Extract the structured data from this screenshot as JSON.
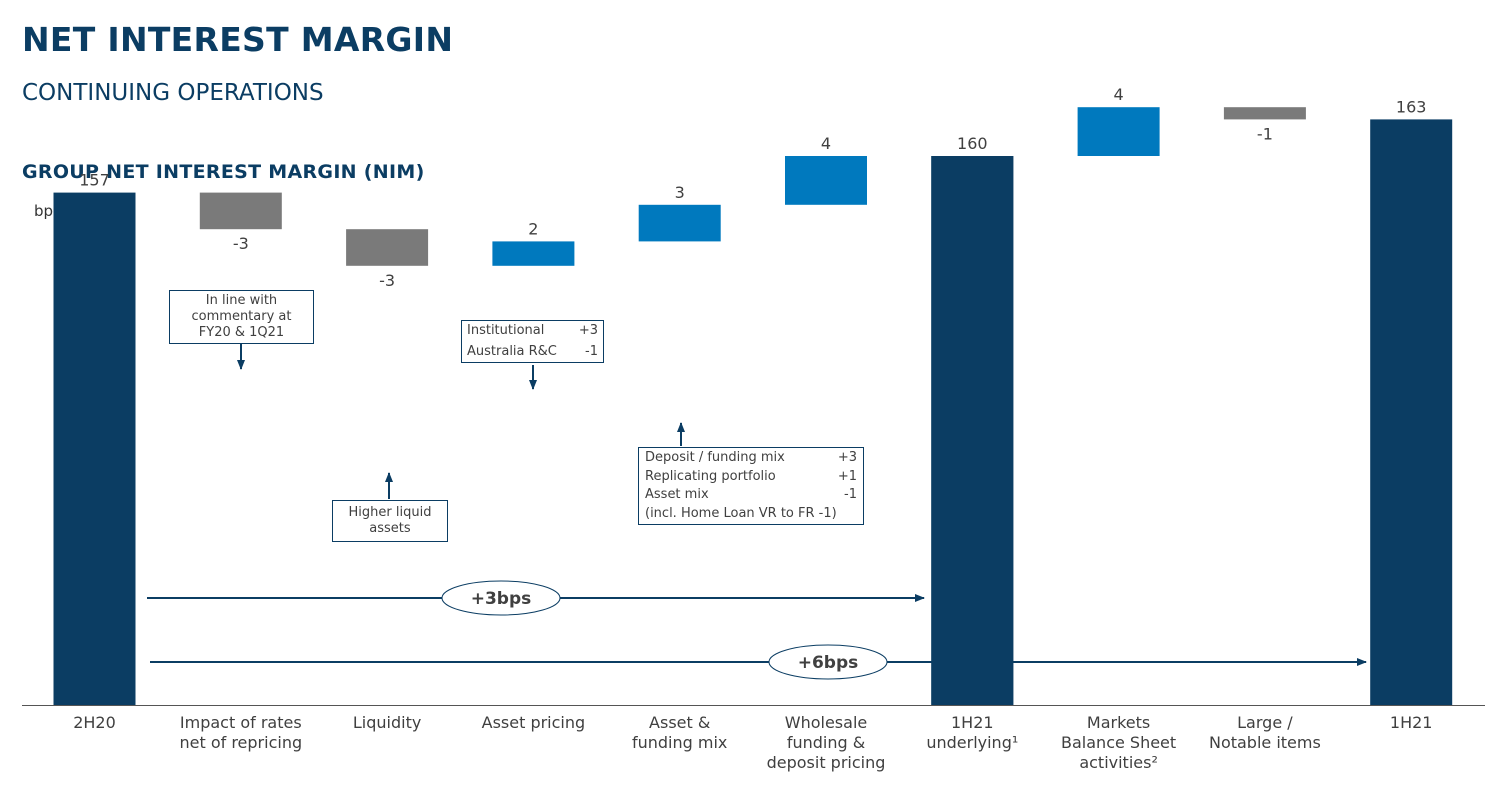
{
  "page": {
    "title": "NET INTEREST MARGIN",
    "subtitle": "CONTINUING OPERATIONS"
  },
  "chart_title": "GROUP NET INTEREST MARGIN (NIM)",
  "colors": {
    "total": "#0b3d63",
    "increase": "#0079be",
    "decrease": "#7a7a7a",
    "axis": "#555555",
    "arrow": "#0b3d63"
  },
  "chart_data": {
    "type": "bar",
    "subtype": "waterfall",
    "ylabel": "bps",
    "ylim": [
      115,
      165
    ],
    "steps": [
      {
        "label": "2H20",
        "value": 157,
        "display": "157",
        "kind": "total"
      },
      {
        "label": "Impact of rates\nnet of repricing",
        "value": -3,
        "display": "-3",
        "kind": "decrease"
      },
      {
        "label": "Liquidity",
        "value": -3,
        "display": "-3",
        "kind": "decrease"
      },
      {
        "label": "Asset pricing",
        "value": 2,
        "display": "2",
        "kind": "increase"
      },
      {
        "label": "Asset &\nfunding mix",
        "value": 3,
        "display": "3",
        "kind": "increase"
      },
      {
        "label": "Wholesale\nfunding &\ndeposit pricing",
        "value": 4,
        "display": "4",
        "kind": "increase"
      },
      {
        "label": "1H21\nunderlying¹",
        "value": 160,
        "display": "160",
        "kind": "total"
      },
      {
        "label": "Markets\nBalance Sheet\nactivities²",
        "value": 4,
        "display": "4",
        "kind": "increase"
      },
      {
        "label": "Large /\nNotable items",
        "value": -1,
        "display": "-1",
        "kind": "decrease"
      },
      {
        "label": "1H21",
        "value": 163,
        "display": "163",
        "kind": "total"
      }
    ],
    "annotations": {
      "bridge_1": "+3bps",
      "bridge_2": "+6bps",
      "rates_note": "In line with\ncommentary at\nFY20 & 1Q21",
      "liquidity_note": "Higher liquid\nassets",
      "asset_pricing_note": [
        {
          "label": "Institutional",
          "value": "+3"
        },
        {
          "label": "Australia R&C",
          "value": "-1"
        }
      ],
      "funding_mix_note": [
        {
          "label": "Deposit / funding mix",
          "value": "+3"
        },
        {
          "label": "Replicating portfolio",
          "value": "+1"
        },
        {
          "label": "Asset mix",
          "value": "-1"
        },
        {
          "label": "(incl. Home Loan VR to FR -1)",
          "value": ""
        }
      ]
    }
  }
}
